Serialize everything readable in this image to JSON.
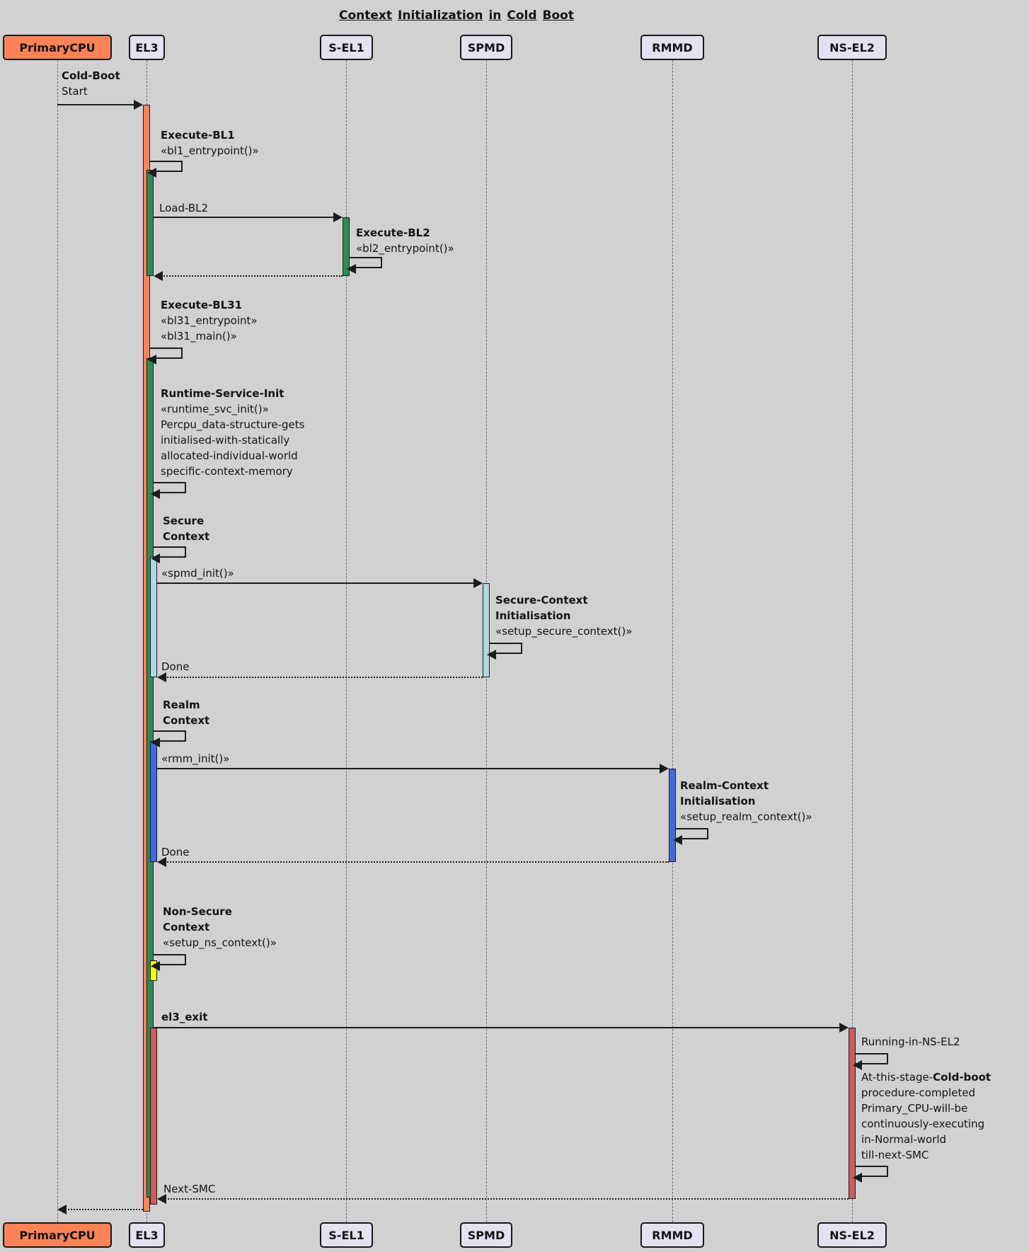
{
  "title": "Context Initialization in Cold Boot",
  "colors": {
    "background": "#d1d1d1",
    "participant_fill": "#e2e2f0",
    "participant_border": "#181818",
    "primary_cpu_fill": "#fb8357",
    "orange": "#fb8357",
    "green": "#2e8b57",
    "light_blue": "#add8e6",
    "blue": "#4169e1",
    "yellow": "#ffff00",
    "red": "#cd5c5c",
    "line": "#1c1c1c"
  },
  "participants": [
    {
      "label": "PrimaryCPU"
    },
    {
      "label": "EL3"
    },
    {
      "label": "S-EL1"
    },
    {
      "label": "SPMD"
    },
    {
      "label": "RMMD"
    },
    {
      "label": "NS-EL2"
    }
  ],
  "messages": {
    "cold_boot": {
      "line1": "Cold-Boot",
      "line2": "Start"
    },
    "execute_bl1": {
      "title": "Execute-BL1",
      "stereotype": "«bl1_entrypoint()»"
    },
    "load_bl2": "Load-BL2",
    "execute_bl2": {
      "title": "Execute-BL2",
      "stereotype": "«bl2_entrypoint()»"
    },
    "execute_bl31": {
      "title": "Execute-BL31",
      "stereotype1": "«bl31_entrypoint»",
      "stereotype2": "«bl31_main()»"
    },
    "runtime_service_init": {
      "title": "Runtime-Service-Init",
      "stereotype": "«runtime_svc_init()»",
      "note1": "Percpu_data-structure-gets",
      "note2": "initialised-with-statically",
      "note3": "allocated-individual-world",
      "note4": "specific-context-memory"
    },
    "secure_context": {
      "line1": "Secure",
      "line2": "Context"
    },
    "spmd_init": "«spmd_init()»",
    "secure_context_init": {
      "line1": "Secure-Context",
      "line2": "Initialisation",
      "stereotype": "«setup_secure_context()»"
    },
    "done_spmd": "Done",
    "realm_context": {
      "line1": "Realm",
      "line2": "Context"
    },
    "rmm_init": "«rmm_init()»",
    "realm_context_init": {
      "line1": "Realm-Context",
      "line2": "Initialisation",
      "stereotype": "«setup_realm_context()»"
    },
    "done_rmmd": "Done",
    "non_secure_context": {
      "line1": "Non-Secure",
      "line2": "Context",
      "stereotype": "«setup_ns_context()»"
    },
    "el3_exit": "el3_exit",
    "running_in_ns_el2": "Running-in-NS-EL2",
    "cold_boot_complete": {
      "line1_normal": "At-this-stage-",
      "line1_bold": "Cold-boot",
      "line2": "procedure-completed",
      "line3": "Primary_CPU-will-be",
      "line4": "continuously-executing",
      "line5": "in-Normal-world",
      "line6": "till-next-SMC"
    },
    "next_smc": "Next-SMC"
  }
}
